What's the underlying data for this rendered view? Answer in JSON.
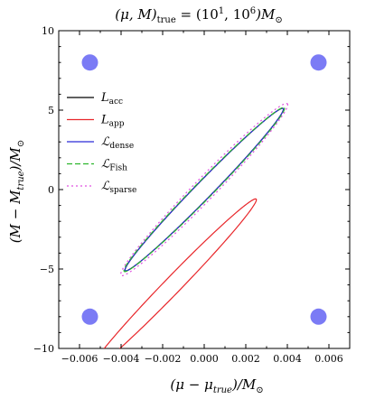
{
  "chart_data": {
    "type": "line",
    "title": "(μ, M)true = (10¹, 10⁶)M⊙",
    "title_parts": {
      "lhs": "(μ, M)",
      "lhs_sub": "true",
      "eq": " = (10",
      "exp1": "1",
      "mid": ", 10",
      "exp2": "6",
      "close": ")M",
      "sun": "⊙"
    },
    "xlabel": "(μ − μtrue)/M⊙",
    "xlabel_parts": {
      "main": "(μ − μ",
      "sub": "true",
      "tail": ")/M",
      "sun": "⊙"
    },
    "ylabel": "(M − Mtrue)/M⊙",
    "ylabel_parts": {
      "main": "(M − M",
      "sub": "true",
      "tail": ")/M",
      "sun": "⊙"
    },
    "xlim": [
      -0.007,
      0.007
    ],
    "ylim": [
      -10,
      10
    ],
    "x_ticks": [
      -0.006,
      -0.004,
      -0.002,
      0.0,
      0.002,
      0.004,
      0.006
    ],
    "x_tick_labels": [
      "−0.006",
      "−0.004",
      "−0.002",
      "0.000",
      "0.002",
      "0.004",
      "0.006"
    ],
    "y_ticks": [
      -10,
      -5,
      0,
      5,
      10
    ],
    "y_tick_labels": [
      "−10",
      "−5",
      "0",
      "5",
      "10"
    ],
    "grid": false,
    "legend_position": "upper-left",
    "series": [
      {
        "name": "Lacc",
        "name_main": "L",
        "name_sub": "acc",
        "color": "#000000",
        "dash": "solid",
        "ellipse": {
          "cx": 0.0,
          "cy": 0.0,
          "semi_major_x": 0.0038,
          "semi_major_y": 5.1,
          "semi_minor_frac": 0.075
        }
      },
      {
        "name": "Lapp",
        "name_main": "L",
        "name_sub": "app",
        "color": "#e8262a",
        "dash": "solid",
        "ellipse": {
          "cx": -0.0015,
          "cy": -6.0,
          "semi_major_x": 0.004,
          "semi_major_y": 5.4,
          "semi_minor_frac": 0.07
        }
      },
      {
        "name": "ℒdense",
        "name_main": "ℒ",
        "name_sub": "dense",
        "color": "#2b2bd6",
        "dash": "solid",
        "ellipse": {
          "cx": 0.0,
          "cy": 0.0,
          "semi_major_x": 0.0038,
          "semi_major_y": 5.1,
          "semi_minor_frac": 0.075
        }
      },
      {
        "name": "ℒFish",
        "name_main": "ℒ",
        "name_sub": "Fish",
        "color": "#2bb52b",
        "dash": "dashed",
        "ellipse": {
          "cx": 0.0,
          "cy": 0.0,
          "semi_major_x": 0.00385,
          "semi_major_y": 5.15,
          "semi_minor_frac": 0.078
        }
      },
      {
        "name": "ℒsparse",
        "name_main": "ℒ",
        "name_sub": "sparse",
        "color": "#e052e0",
        "dash": "dotted",
        "ellipse": {
          "cx": 0.0,
          "cy": 0.0,
          "semi_major_x": 0.004,
          "semi_major_y": 5.4,
          "semi_minor_frac": 0.09
        }
      }
    ],
    "markers": {
      "color": "#7b7bf5",
      "points": [
        {
          "x": -0.0055,
          "y": 8
        },
        {
          "x": 0.0055,
          "y": 8
        },
        {
          "x": -0.0055,
          "y": -8
        },
        {
          "x": 0.0055,
          "y": -8
        }
      ]
    }
  }
}
